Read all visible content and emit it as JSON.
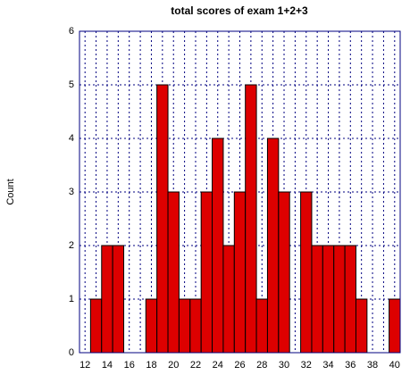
{
  "chart_data": {
    "type": "histogram",
    "title": "total scores of exam 1+2+3",
    "ylabel": "Count",
    "bins": [
      11.5,
      12.5,
      13.5,
      14.5,
      15.5,
      16.5,
      17.5,
      18.5,
      19.5,
      20.5,
      21.5,
      22.5,
      23.5,
      24.5,
      25.5,
      26.5,
      27.5,
      28.5,
      29.5,
      30.5,
      31.5,
      32.5,
      33.5,
      34.5,
      35.5,
      36.5,
      37.5,
      38.5,
      39.5,
      40.5
    ],
    "values": [
      0,
      1,
      2,
      2,
      0,
      0,
      1,
      5,
      3,
      1,
      1,
      3,
      4,
      2,
      3,
      5,
      1,
      4,
      3,
      0,
      3,
      2,
      2,
      2,
      2,
      1,
      0,
      0,
      1
    ],
    "color": "#dd0000",
    "xlim": [
      11.5,
      40.5
    ],
    "xticks": [
      12,
      14,
      16,
      18,
      20,
      22,
      24,
      26,
      28,
      30,
      32,
      34,
      36,
      38,
      40
    ],
    "minor_xticks": [
      13,
      15,
      17,
      19,
      21,
      23,
      25,
      27,
      29,
      31,
      33,
      35,
      37,
      39
    ],
    "ylim": [
      0,
      6
    ],
    "yticks": [
      0,
      1,
      2,
      3,
      4,
      5,
      6
    ],
    "grid": true
  }
}
